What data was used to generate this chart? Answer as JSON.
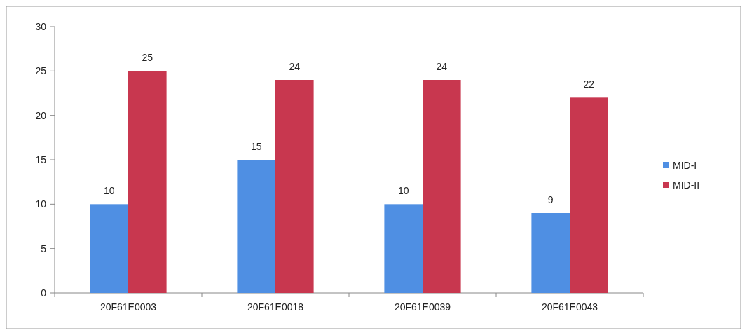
{
  "chart_data": {
    "type": "bar",
    "categories": [
      "20F61E0003",
      "20F61E0018",
      "20F61E0039",
      "20F61E0043"
    ],
    "series": [
      {
        "name": "MID-I",
        "color": "#4f8fe3",
        "values": [
          10,
          15,
          10,
          9
        ]
      },
      {
        "name": "MID-II",
        "color": "#c8374f",
        "values": [
          25,
          24,
          24,
          22
        ]
      }
    ],
    "ylim": [
      0,
      30
    ],
    "yticks": [
      0,
      5,
      10,
      15,
      20,
      25,
      30
    ],
    "data_labels": true,
    "legend": "right",
    "grid": false
  }
}
